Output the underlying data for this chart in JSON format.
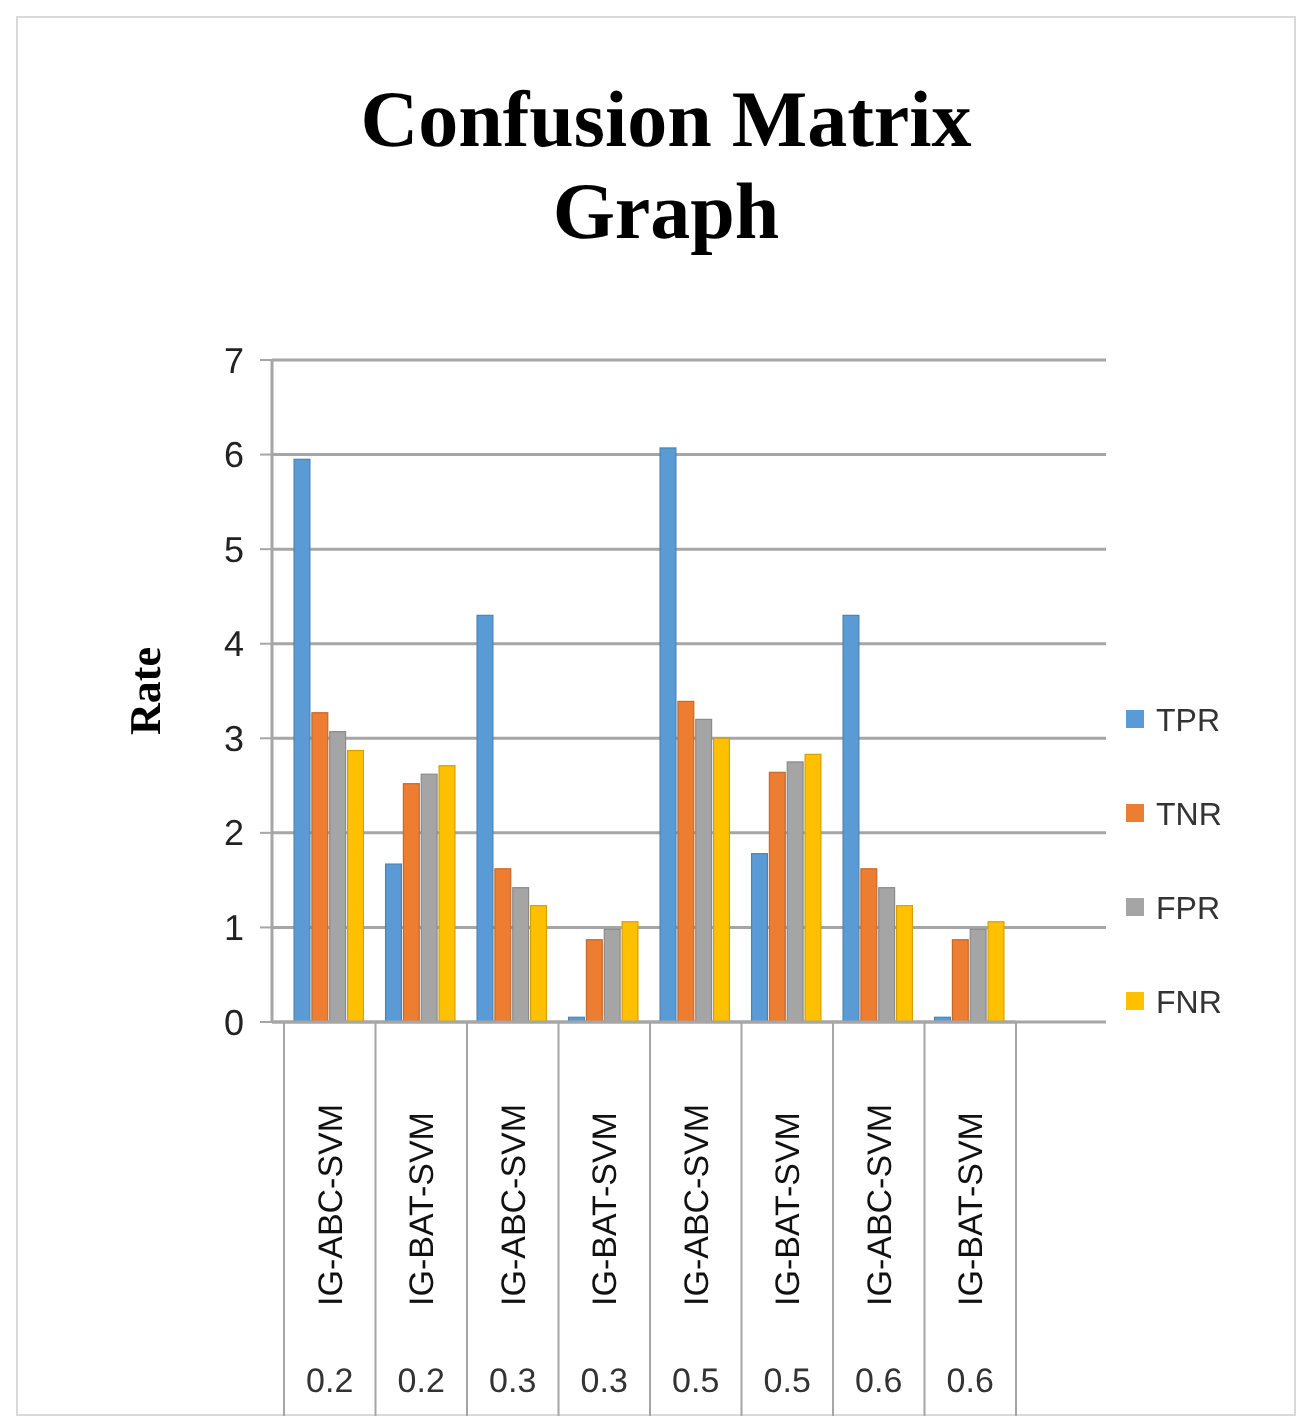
{
  "chart_data": {
    "type": "bar",
    "title": "Confusion Matrix Graph",
    "ylabel": "Rate",
    "categories": [
      "IG-ABC-SVM\n0.2",
      "IG-BAT-SVM\n0.2",
      "IG-ABC-SVM\n0.3",
      "IG-BAT-SVM\n0.3",
      "IG-ABC-SVM\n0.5",
      "IG-BAT-SVM\n0.5",
      "IG-ABC-SVM\n0.6",
      "IG-BAT-SVM\n0.6"
    ],
    "series": [
      {
        "name": "TPR",
        "color": "#5b9bd5",
        "values": [
          5.95,
          1.67,
          4.3,
          0.05,
          6.07,
          1.78,
          4.3,
          0.05
        ]
      },
      {
        "name": "TNR",
        "color": "#ed7d31",
        "values": [
          3.27,
          2.52,
          1.62,
          0.87,
          3.39,
          2.64,
          1.62,
          0.87
        ]
      },
      {
        "name": "FPR",
        "color": "#a5a5a5",
        "values": [
          3.07,
          2.62,
          1.42,
          0.98,
          3.2,
          2.75,
          1.42,
          0.98
        ]
      },
      {
        "name": "FNR",
        "color": "#ffc000",
        "values": [
          2.87,
          2.71,
          1.23,
          1.06,
          3.0,
          2.83,
          1.23,
          1.06
        ]
      }
    ],
    "ylim": [
      0,
      7
    ],
    "yticks": [
      0,
      1,
      2,
      3,
      4,
      5,
      6,
      7
    ],
    "grid": "y",
    "legend": "right"
  }
}
